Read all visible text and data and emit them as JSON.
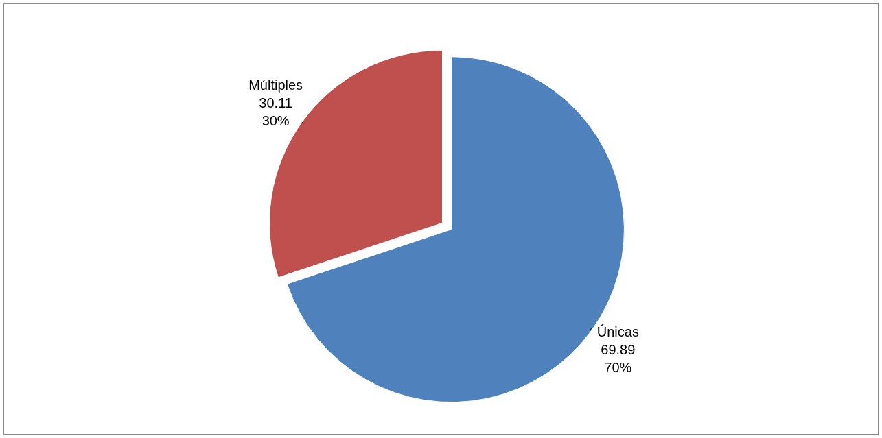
{
  "chart_data": {
    "type": "pie",
    "categories": [
      "Únicas",
      "Múltiples"
    ],
    "values": [
      69.89,
      30.11
    ],
    "colors": [
      "#4f81bd",
      "#c0504d"
    ],
    "value_labels": [
      "69.89\n70%",
      "30.11\n30%"
    ]
  }
}
